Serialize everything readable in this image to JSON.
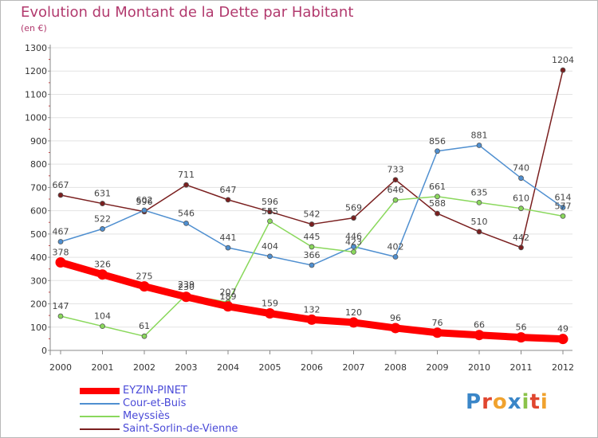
{
  "chart_data": {
    "type": "line",
    "title": "Evolution du Montant de la Dette par Habitant",
    "subtitle": "(en €)",
    "x": [
      "2000",
      "2001",
      "2002",
      "2003",
      "2004",
      "2005",
      "2006",
      "2007",
      "2008",
      "2009",
      "2010",
      "2011",
      "2012"
    ],
    "ylim": [
      0,
      1300
    ],
    "yticks": [
      0,
      100,
      200,
      300,
      400,
      500,
      600,
      700,
      800,
      900,
      1000,
      1100,
      1200,
      1300
    ],
    "grid": "horizontal",
    "legend_position": "bottom-left",
    "series": [
      {
        "name": "Saint-Sorlin-de-Vienne",
        "color": "#7a1f1f",
        "values": [
          667,
          631,
          596,
          711,
          647,
          596,
          542,
          569,
          733,
          588,
          510,
          442,
          1204
        ]
      },
      {
        "name": "Cour-et-Buis",
        "color": "#4f8fd0",
        "values": [
          467,
          522,
          602,
          546,
          441,
          404,
          366,
          446,
          402,
          856,
          881,
          740,
          614
        ]
      },
      {
        "name": "Meyssiès",
        "color": "#8ad85c",
        "values": [
          147,
          104,
          61,
          239,
          207,
          555,
          445,
          423,
          646,
          661,
          635,
          610,
          577
        ]
      },
      {
        "name": "EYZIN-PINET",
        "color": "#ff0000",
        "values": [
          378,
          326,
          275,
          230,
          189,
          159,
          132,
          120,
          96,
          76,
          66,
          56,
          49
        ]
      }
    ],
    "legend_order": [
      "EYZIN-PINET",
      "Cour-et-Buis",
      "Meyssiès",
      "Saint-Sorlin-de-Vienne"
    ]
  },
  "logo": {
    "text": "Proxiti",
    "colors": [
      "#3a86c8",
      "#e0462f",
      "#f0a22e",
      "#3a86c8",
      "#8bc34a",
      "#e0462f",
      "#f0a22e"
    ]
  }
}
